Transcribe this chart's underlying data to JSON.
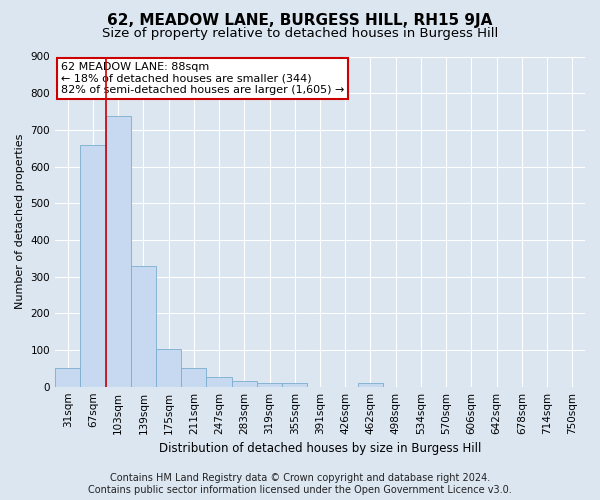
{
  "title": "62, MEADOW LANE, BURGESS HILL, RH15 9JA",
  "subtitle": "Size of property relative to detached houses in Burgess Hill",
  "xlabel": "Distribution of detached houses by size in Burgess Hill",
  "ylabel": "Number of detached properties",
  "footer_line1": "Contains HM Land Registry data © Crown copyright and database right 2024.",
  "footer_line2": "Contains public sector information licensed under the Open Government Licence v3.0.",
  "categories": [
    "31sqm",
    "67sqm",
    "103sqm",
    "139sqm",
    "175sqm",
    "211sqm",
    "247sqm",
    "283sqm",
    "319sqm",
    "355sqm",
    "391sqm",
    "426sqm",
    "462sqm",
    "498sqm",
    "534sqm",
    "570sqm",
    "606sqm",
    "642sqm",
    "678sqm",
    "714sqm",
    "750sqm"
  ],
  "values": [
    52,
    658,
    737,
    330,
    103,
    52,
    27,
    15,
    11,
    10,
    0,
    0,
    10,
    0,
    0,
    0,
    0,
    0,
    0,
    0,
    0
  ],
  "bar_color": "#c6d9f0",
  "bar_edge_color": "#7aadce",
  "vline_color": "#cc0000",
  "annotation_text": "62 MEADOW LANE: 88sqm\n← 18% of detached houses are smaller (344)\n82% of semi-detached houses are larger (1,605) →",
  "annotation_box_facecolor": "#ffffff",
  "annotation_box_edgecolor": "#cc0000",
  "ylim": [
    0,
    900
  ],
  "yticks": [
    0,
    100,
    200,
    300,
    400,
    500,
    600,
    700,
    800,
    900
  ],
  "bg_color": "#dce6f1",
  "plot_bg_color": "#dce6f1",
  "grid_color": "#ffffff",
  "title_fontsize": 11,
  "subtitle_fontsize": 9.5,
  "axis_label_fontsize": 8,
  "tick_fontsize": 7.5,
  "footer_fontsize": 7,
  "ann_fontsize": 8
}
